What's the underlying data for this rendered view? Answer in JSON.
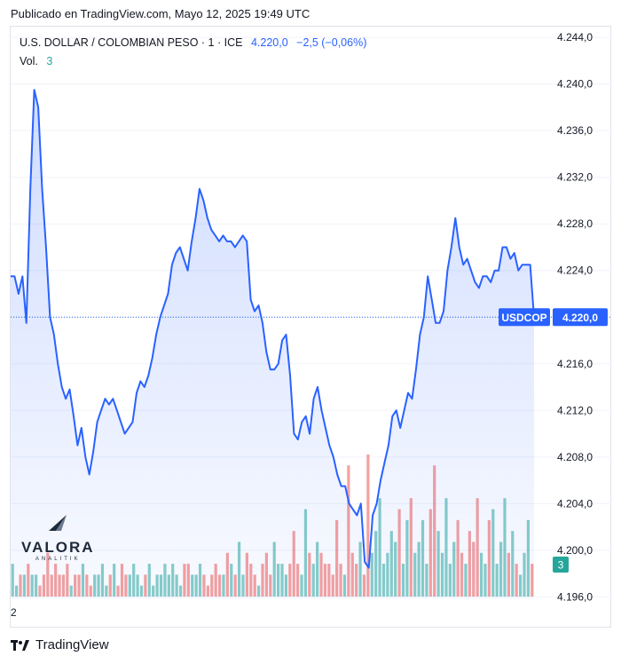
{
  "published": "Publicado en TradingView.com, Mayo 12, 2025 19:49 UTC",
  "legend": {
    "symbol": "U.S. DOLLAR / COLOMBIAN PESO · 1 · ICE",
    "last": "4.220,0",
    "change": "−2,5 (−0,06%)"
  },
  "volume": {
    "label": "Vol.",
    "value": "3",
    "badge": "3"
  },
  "price_label": {
    "ticker": "USDCOP",
    "value": "4.220,0"
  },
  "watermark": {
    "brand": "VALORA",
    "sub": "ANALITIK"
  },
  "x_tick": "2",
  "footer": {
    "brand": "TradingView"
  },
  "colors": {
    "line": "#2962ff",
    "fill": "#2962ff",
    "vol_up": "#26a69a",
    "vol_down": "#ef5350"
  },
  "chart_data": {
    "type": "area",
    "series": [
      {
        "values": [
          4223.5,
          4223.5,
          4222.0,
          4223.5,
          4219.5,
          4231.0,
          4239.5,
          4238.0,
          4231.0,
          4226.0,
          4220.0,
          4218.5,
          4216.0,
          4214.0,
          4213.0,
          4213.8,
          4211.5,
          4209.0,
          4210.5,
          4208.0,
          4206.5,
          4208.5,
          4211.0,
          4212.0,
          4213.0,
          4212.5,
          4213.0,
          4212.0,
          4211.0,
          4210.0,
          4210.5,
          4211.0,
          4213.5,
          4214.5,
          4214.0,
          4215.0,
          4216.5,
          4218.5,
          4220.0,
          4221.0,
          4222.0,
          4224.5,
          4225.5,
          4226.0,
          4225.0,
          4224.0,
          4226.5,
          4228.5,
          4231.0,
          4230.0,
          4228.5,
          4227.5,
          4227.0,
          4226.5,
          4227.0,
          4226.5,
          4226.5,
          4226.0,
          4226.5,
          4227.0,
          4226.5,
          4221.5,
          4220.5,
          4221.0,
          4219.5,
          4217.0,
          4215.5,
          4215.5,
          4216.0,
          4218.0,
          4218.5,
          4215.0,
          4210.0,
          4209.5,
          4211.0,
          4211.5,
          4210.0,
          4213.0,
          4214.0,
          4212.0,
          4210.5,
          4209.0,
          4208.0,
          4206.5,
          4205.5,
          4205.5,
          4204.0,
          4203.5,
          4203.0,
          4204.0,
          4199.0,
          4198.5,
          4203.0,
          4204.0,
          4206.0,
          4207.5,
          4209.0,
          4211.5,
          4212.0,
          4210.5,
          4212.0,
          4213.5,
          4213.0,
          4215.5,
          4218.5,
          4220.0,
          4223.5,
          4221.5,
          4219.5,
          4219.5,
          4220.5,
          4224.0,
          4226.0,
          4228.5,
          4226.0,
          4224.5,
          4225.0,
          4224.0,
          4223.0,
          4222.5,
          4223.5,
          4223.5,
          4223.0,
          4224.0,
          4224.0,
          4226.0,
          4226.0,
          4225.0,
          4225.5,
          4224.0,
          4224.5,
          4224.5,
          4224.5,
          4220.0
        ],
        "volume": [
          3,
          1,
          2,
          2,
          3,
          2,
          2,
          1,
          2,
          4,
          2,
          3,
          2,
          2,
          3,
          1,
          2,
          2,
          3,
          2,
          1,
          2,
          2,
          3,
          1,
          2,
          3,
          1,
          3,
          2,
          2,
          3,
          2,
          1,
          2,
          3,
          1,
          2,
          2,
          3,
          2,
          3,
          2,
          1,
          3,
          3,
          2,
          2,
          3,
          2,
          1,
          2,
          3,
          2,
          2,
          4,
          3,
          2,
          5,
          2,
          4,
          3,
          2,
          1,
          3,
          4,
          2,
          5,
          3,
          3,
          2,
          3,
          6,
          3,
          2,
          8,
          4,
          3,
          5,
          4,
          3,
          3,
          2,
          7,
          3,
          2,
          12,
          4,
          3,
          5,
          2,
          13,
          4,
          6,
          9,
          3,
          4,
          6,
          5,
          8,
          3,
          7,
          9,
          4,
          5,
          7,
          3,
          8,
          12,
          6,
          4,
          9,
          3,
          5,
          7,
          4,
          3,
          6,
          5,
          9,
          4,
          3,
          7,
          8,
          3,
          5,
          9,
          4,
          6,
          3,
          2,
          4,
          7,
          3
        ]
      }
    ],
    "y_ticks": [
      "4.196,0",
      "4.200,0",
      "4.204,0",
      "4.208,0",
      "4.212,0",
      "4.216,0",
      "4.220,0",
      "4.224,0",
      "4.228,0",
      "4.232,0",
      "4.236,0",
      "4.240,0",
      "4.244,0"
    ],
    "ylim": [
      4195.8,
      4245.0
    ],
    "last_value": 4220.0
  }
}
